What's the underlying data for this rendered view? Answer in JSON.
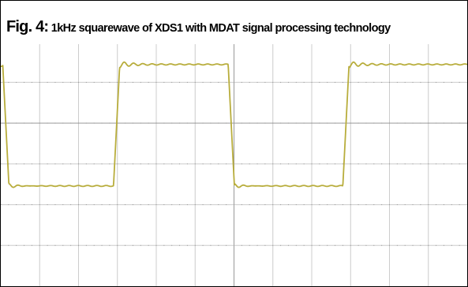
{
  "figure": {
    "label": "Fig. 4:",
    "caption": " 1kHz squarewave of XDS1 with MDAT signal processing  technology"
  },
  "colors": {
    "trace": "#b8ad3c",
    "grid": "#cccccc",
    "center_axis": "#9a9a9a",
    "border": "#000000"
  },
  "chart_data": {
    "type": "line",
    "title": "Fig. 4: 1kHz squarewave of XDS1 with MDAT signal processing  technology",
    "xlabel": "",
    "ylabel": "",
    "xlim": [
      0,
      12
    ],
    "ylim": [
      -4.2,
      3.2
    ],
    "grid": true,
    "grid_divisions": {
      "x": 12,
      "y": 7
    },
    "tick_labels": "none",
    "series": [
      {
        "type": "square_wave",
        "high": 1.55,
        "low": -1.6,
        "period": 5.9,
        "rising_edges": [
          2.9,
          8.8
        ],
        "falling_edges": [
          0.05,
          5.85
        ],
        "rise_time": 0.16,
        "ringing": "small damped overshoot after each edge",
        "points": [
          [
            0.0,
            1.5
          ],
          [
            0.05,
            1.5
          ],
          [
            0.21,
            -1.6
          ],
          [
            2.9,
            -1.6
          ],
          [
            3.06,
            1.55
          ],
          [
            5.85,
            1.55
          ],
          [
            6.01,
            -1.6
          ],
          [
            8.8,
            -1.6
          ],
          [
            8.96,
            1.55
          ],
          [
            12.0,
            1.55
          ]
        ]
      }
    ]
  }
}
